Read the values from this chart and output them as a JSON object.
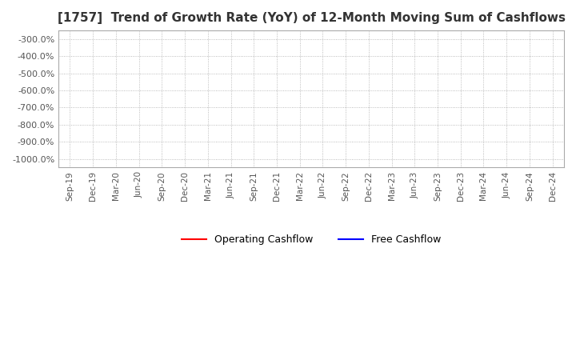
{
  "title": "[1757]  Trend of Growth Rate (YoY) of 12-Month Moving Sum of Cashflows",
  "title_fontsize": 11,
  "title_color": "#333333",
  "ylim": [
    -1050.0,
    -250.0
  ],
  "yticks": [
    -300.0,
    -400.0,
    -500.0,
    -600.0,
    -700.0,
    -800.0,
    -900.0,
    -1000.0
  ],
  "ytick_labels": [
    "-300.0%",
    "-400.0%",
    "-500.0%",
    "-600.0%",
    "-700.0%",
    "-800.0%",
    "-900.0%",
    "-1000.0%"
  ],
  "x_labels": [
    "Sep-19",
    "Dec-19",
    "Mar-20",
    "Jun-20",
    "Sep-20",
    "Dec-20",
    "Mar-21",
    "Jun-21",
    "Sep-21",
    "Dec-21",
    "Mar-22",
    "Jun-22",
    "Sep-22",
    "Dec-22",
    "Mar-23",
    "Jun-23",
    "Sep-23",
    "Dec-23",
    "Mar-24",
    "Jun-24",
    "Sep-24",
    "Dec-24"
  ],
  "operating_cashflow": [
    null,
    null,
    null,
    null,
    null,
    null,
    null,
    null,
    null,
    null,
    null,
    null,
    null,
    null,
    null,
    null,
    null,
    null,
    null,
    null,
    null,
    null
  ],
  "free_cashflow": [
    null,
    null,
    null,
    null,
    null,
    null,
    null,
    null,
    null,
    null,
    null,
    null,
    null,
    null,
    null,
    null,
    null,
    null,
    null,
    null,
    null,
    null
  ],
  "operating_color": "#ff0000",
  "free_color": "#0000ff",
  "grid_color": "#aaaaaa",
  "bg_color": "#ffffff",
  "plot_bg_color": "#ffffff",
  "legend_labels": [
    "Operating Cashflow",
    "Free Cashflow"
  ],
  "line_width": 1.5,
  "border_color": "#aaaaaa"
}
